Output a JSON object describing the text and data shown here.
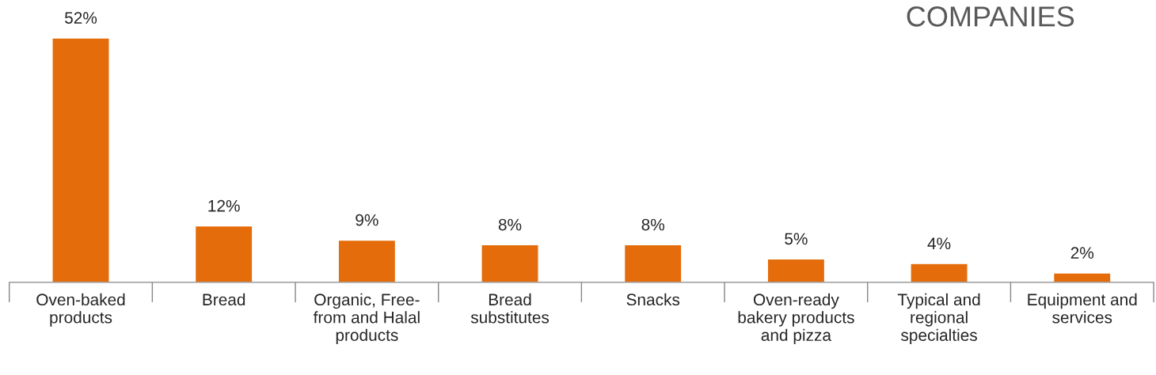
{
  "chart_data": {
    "type": "bar",
    "title": "COMPANIES",
    "categories": [
      "Oven-baked\nproducts",
      "Bread",
      "Organic, Free-\nfrom and Halal\nproducts",
      "Bread\nsubstitutes",
      "Snacks",
      "Oven-ready\nbakery products\nand pizza",
      "Typical and\nregional\nspecialties",
      "Equipment and\nservices"
    ],
    "values": [
      52,
      12,
      9,
      8,
      8,
      5,
      4,
      2
    ],
    "value_labels": [
      "52%",
      "12%",
      "9%",
      "8%",
      "8%",
      "5%",
      "4%",
      "2%"
    ],
    "color": "#e46c0a",
    "grid": false,
    "legend": false
  }
}
